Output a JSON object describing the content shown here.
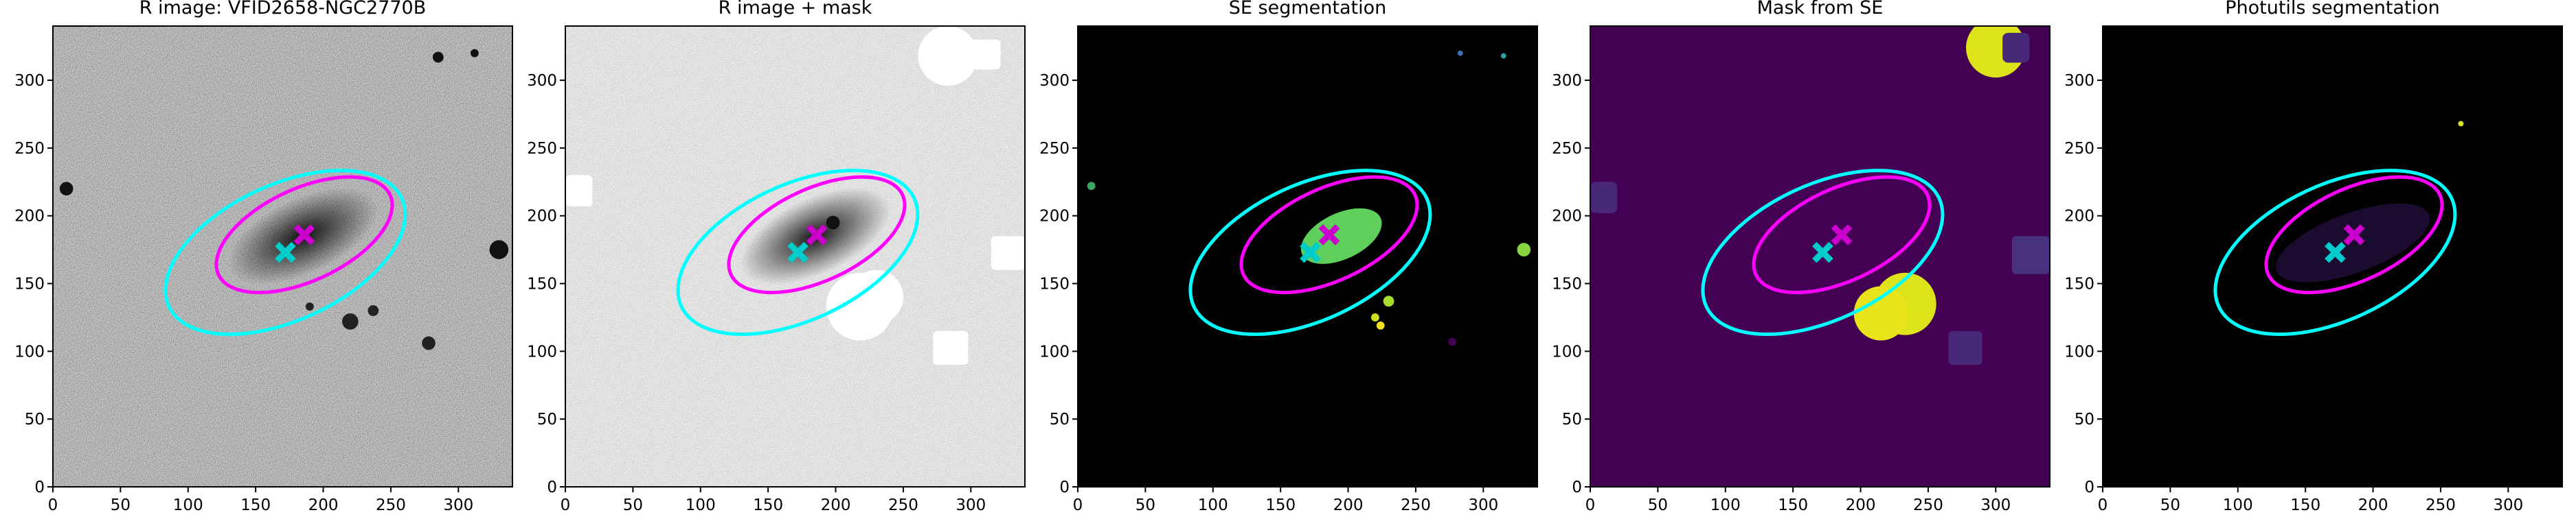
{
  "chart_data": [
    {
      "type": "image",
      "title": "R image: VFID2658-NGC2770B",
      "background": "noise-dark",
      "xlim": [
        0,
        340
      ],
      "ylim": [
        0,
        340
      ],
      "xticks": [
        0,
        50,
        100,
        150,
        200,
        250,
        300
      ],
      "yticks": [
        0,
        50,
        100,
        150,
        200,
        250,
        300
      ],
      "ellipses": [
        {
          "x": 172,
          "y": 173,
          "a": 95,
          "b": 50,
          "angle": 25,
          "color": "#00ffff"
        },
        {
          "x": 186,
          "y": 186,
          "a": 70,
          "b": 34,
          "angle": 25,
          "color": "#ff00ff"
        }
      ],
      "markers": [
        {
          "x": 172,
          "y": 173,
          "color": "#00cccc"
        },
        {
          "x": 186,
          "y": 186,
          "color": "#cc00cc"
        }
      ]
    },
    {
      "type": "image",
      "title": "R image + mask",
      "background": "noise-light",
      "xlim": [
        0,
        340
      ],
      "ylim": [
        0,
        340
      ],
      "xticks": [
        0,
        50,
        100,
        150,
        200,
        250,
        300
      ],
      "yticks": [
        0,
        50,
        100,
        150,
        200,
        250,
        300
      ],
      "ellipses": [
        {
          "x": 172,
          "y": 173,
          "a": 95,
          "b": 50,
          "angle": 25,
          "color": "#00ffff"
        },
        {
          "x": 186,
          "y": 186,
          "a": 70,
          "b": 34,
          "angle": 25,
          "color": "#ff00ff"
        }
      ],
      "markers": [
        {
          "x": 172,
          "y": 173,
          "color": "#00cccc"
        },
        {
          "x": 186,
          "y": 186,
          "color": "#cc00cc"
        }
      ]
    },
    {
      "type": "image",
      "title": "SE segmentation",
      "background": "#000000",
      "xlim": [
        0,
        340
      ],
      "ylim": [
        0,
        340
      ],
      "xticks": [
        0,
        50,
        100,
        150,
        200,
        250,
        300
      ],
      "yticks": [
        0,
        50,
        100,
        150,
        200,
        250,
        300
      ],
      "ellipses": [
        {
          "x": 172,
          "y": 173,
          "a": 95,
          "b": 50,
          "angle": 25,
          "color": "#00ffff"
        },
        {
          "x": 186,
          "y": 186,
          "a": 70,
          "b": 34,
          "angle": 25,
          "color": "#ff00ff"
        }
      ],
      "markers": [
        {
          "x": 172,
          "y": 173,
          "color": "#00cccc"
        },
        {
          "x": 186,
          "y": 186,
          "color": "#cc00cc"
        }
      ]
    },
    {
      "type": "image",
      "title": "Mask from SE",
      "background": "#440154",
      "xlim": [
        0,
        340
      ],
      "ylim": [
        0,
        340
      ],
      "xticks": [
        0,
        50,
        100,
        150,
        200,
        250,
        300
      ],
      "yticks": [
        0,
        50,
        100,
        150,
        200,
        250,
        300
      ],
      "ellipses": [
        {
          "x": 172,
          "y": 173,
          "a": 95,
          "b": 50,
          "angle": 25,
          "color": "#00ffff"
        },
        {
          "x": 186,
          "y": 186,
          "a": 70,
          "b": 34,
          "angle": 25,
          "color": "#ff00ff"
        }
      ],
      "markers": [
        {
          "x": 172,
          "y": 173,
          "color": "#00cccc"
        },
        {
          "x": 186,
          "y": 186,
          "color": "#cc00cc"
        }
      ]
    },
    {
      "type": "image",
      "title": "Photutils segmentation",
      "background": "#000000",
      "xlim": [
        0,
        340
      ],
      "ylim": [
        0,
        340
      ],
      "xticks": [
        0,
        50,
        100,
        150,
        200,
        250,
        300
      ],
      "yticks": [
        0,
        50,
        100,
        150,
        200,
        250,
        300
      ],
      "ellipses": [
        {
          "x": 172,
          "y": 173,
          "a": 95,
          "b": 50,
          "angle": 25,
          "color": "#00ffff"
        },
        {
          "x": 186,
          "y": 186,
          "a": 70,
          "b": 34,
          "angle": 25,
          "color": "#ff00ff"
        }
      ],
      "markers": [
        {
          "x": 172,
          "y": 173,
          "color": "#00cccc"
        },
        {
          "x": 186,
          "y": 186,
          "color": "#cc00cc"
        }
      ]
    }
  ]
}
